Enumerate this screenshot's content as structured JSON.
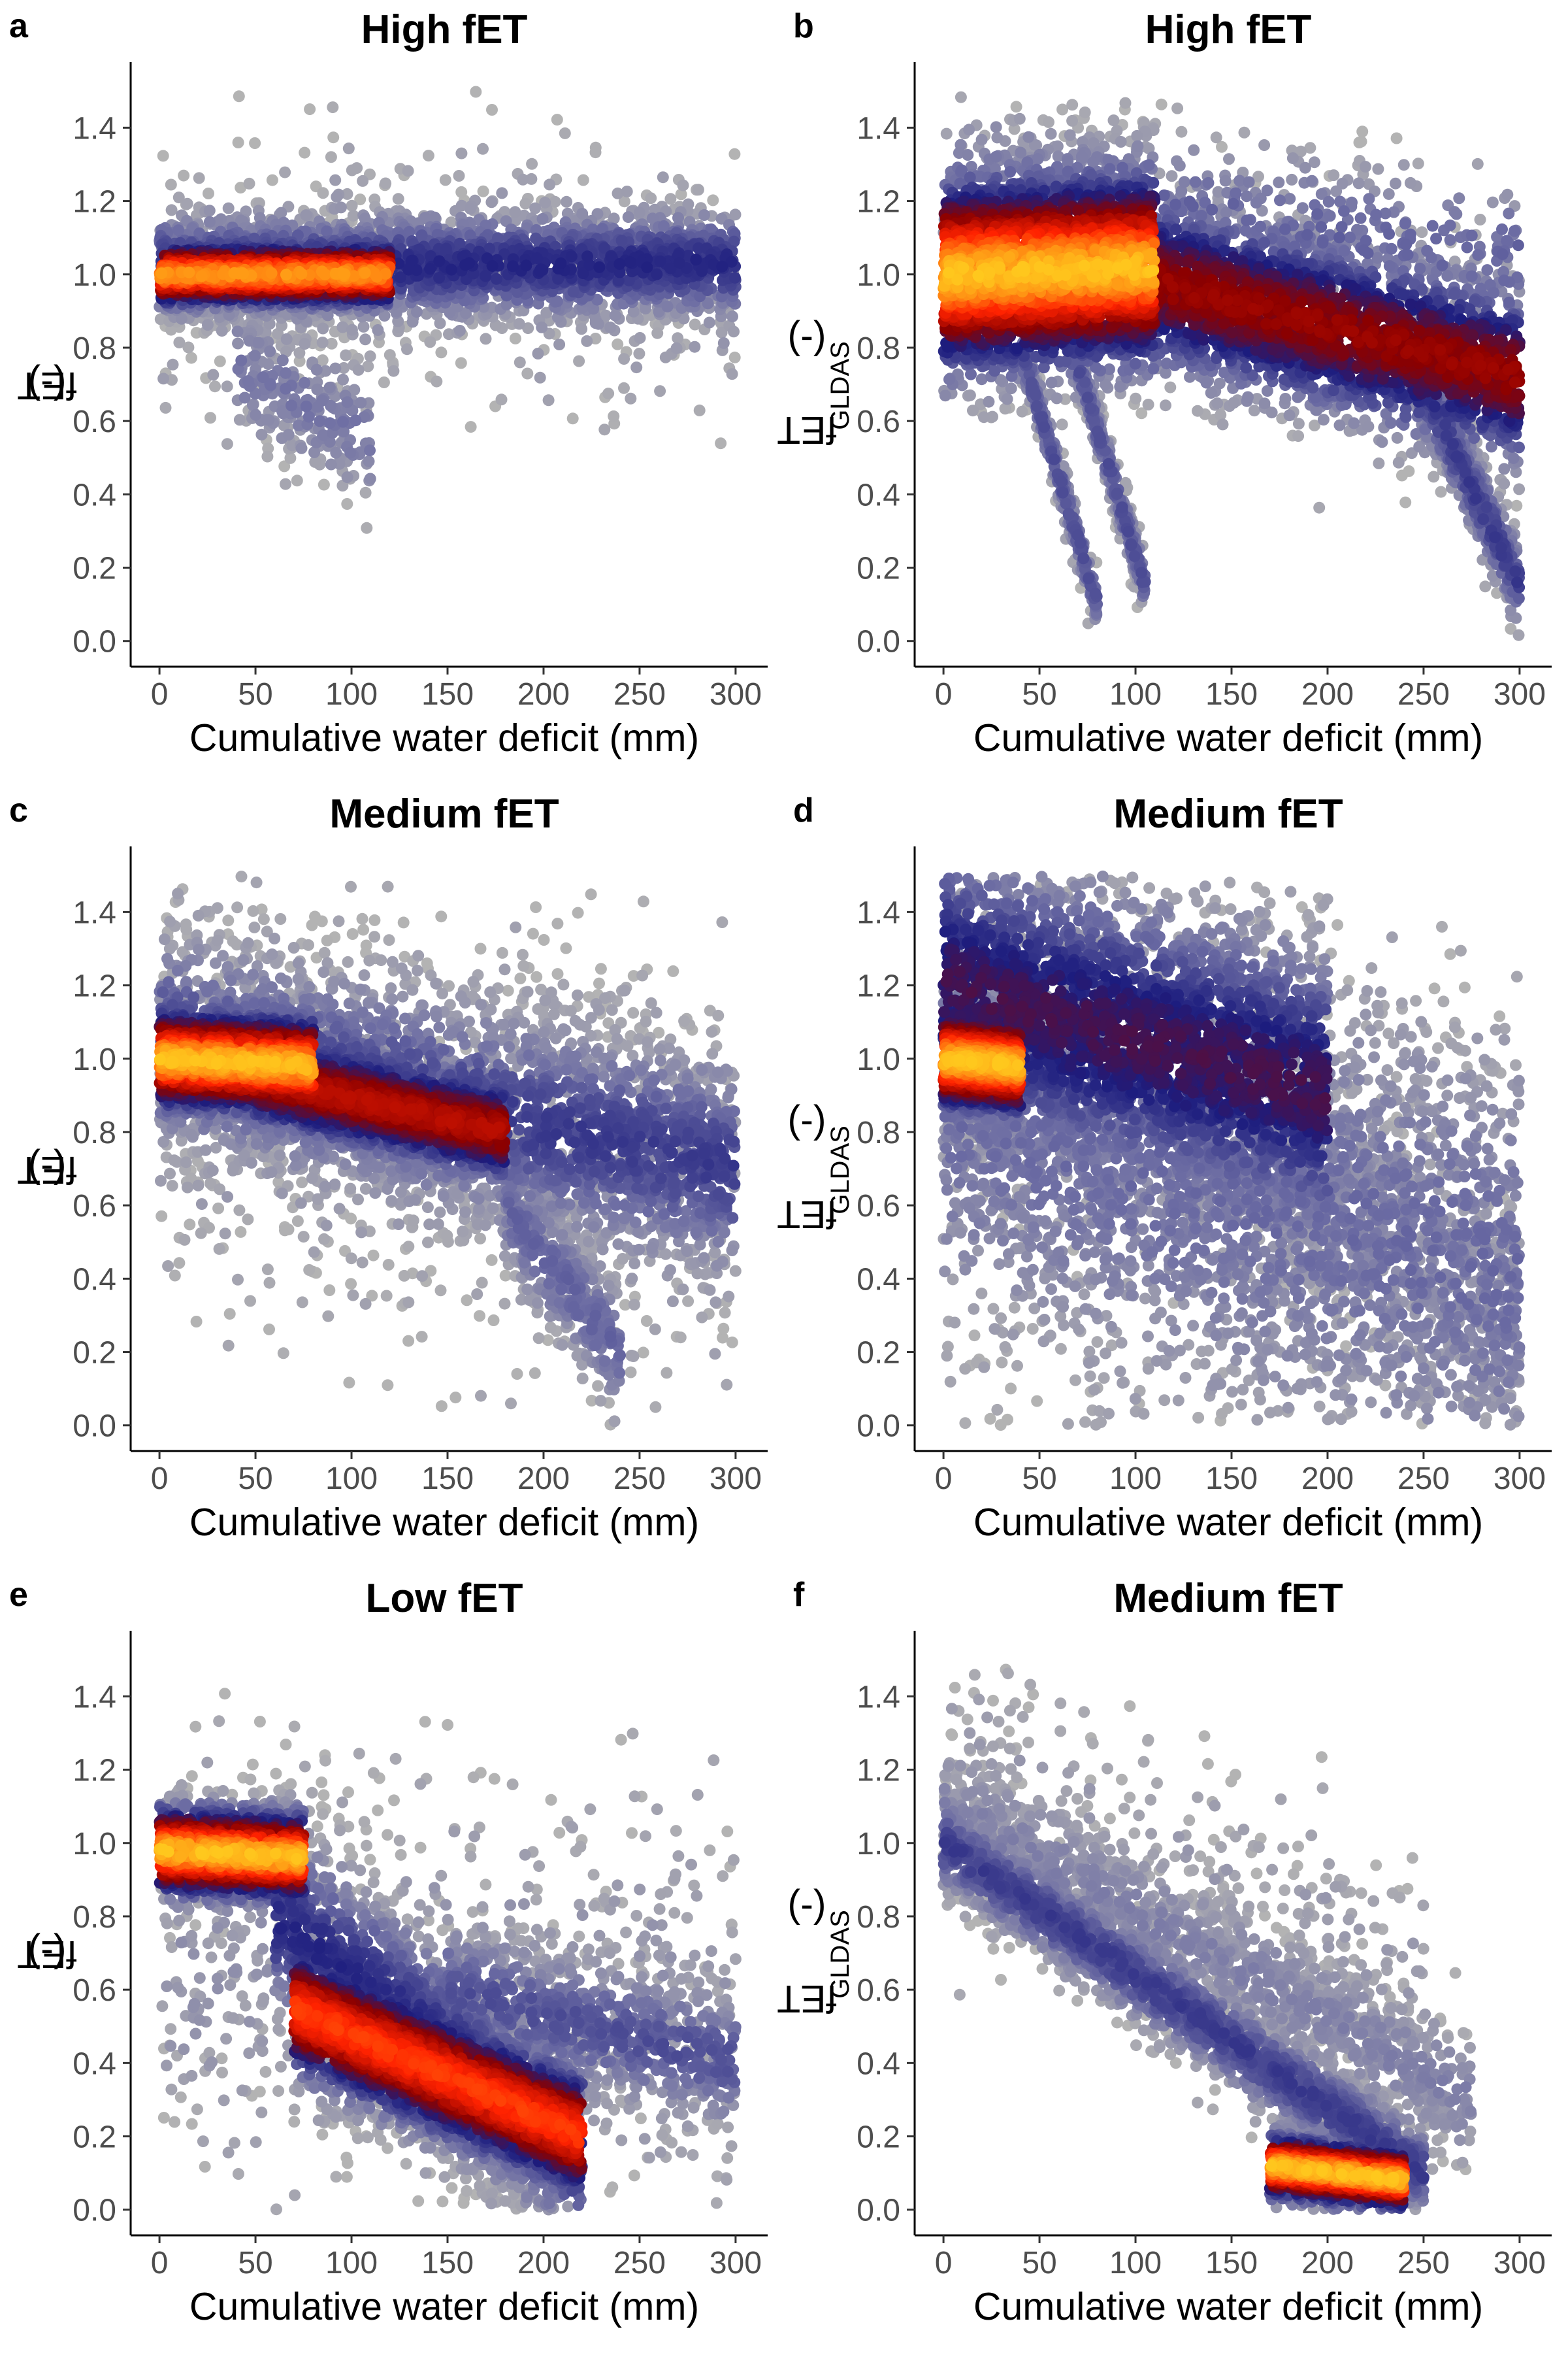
{
  "chart_data": [
    {
      "panel": "a",
      "type": "scatter",
      "title": "High fET",
      "xlabel": "Cumulative water deficit (mm)",
      "ylabel_main": "fET",
      "ylabel_sub": "",
      "ylabel_suffix": " (-)",
      "xlim": [
        -15,
        315
      ],
      "ylim": [
        -0.07,
        1.57
      ],
      "xticks": [
        0,
        50,
        100,
        150,
        200,
        250,
        300
      ],
      "yticks": [
        0.0,
        0.2,
        0.4,
        0.6,
        0.8,
        1.0,
        1.2,
        1.4
      ],
      "density_colormap": [
        "#b3b3b3",
        "#6b6ba3",
        "#1c1c7e",
        "#8b0000",
        "#ff2200",
        "#ffd21f"
      ],
      "clusters": [
        {
          "x_range": [
            0,
            300
          ],
          "y_start": 1.02,
          "y_end": 1.03,
          "spread": 0.08,
          "count": 2200,
          "density": 0.35
        },
        {
          "x_range": [
            0,
            120
          ],
          "y_start": 1.0,
          "y_end": 1.0,
          "spread": 0.05,
          "count": 1500,
          "density": 0.9
        },
        {
          "x_range": [
            0,
            300
          ],
          "y_start": 1.0,
          "y_end": 1.0,
          "spread": 0.18,
          "count": 500,
          "density": 0.08
        },
        {
          "x_range": [
            40,
            110
          ],
          "y_start": 0.75,
          "y_end": 0.55,
          "spread": 0.1,
          "count": 250,
          "density": 0.15
        }
      ]
    },
    {
      "panel": "b",
      "type": "scatter",
      "title": "High fET",
      "xlabel": "Cumulative water deficit (mm)",
      "ylabel_main": "fET",
      "ylabel_sub": "GLDAS",
      "ylabel_suffix": " (-)",
      "xlim": [
        -15,
        315
      ],
      "ylim": [
        -0.07,
        1.57
      ],
      "xticks": [
        0,
        50,
        100,
        150,
        200,
        250,
        300
      ],
      "yticks": [
        0.0,
        0.2,
        0.4,
        0.6,
        0.8,
        1.0,
        1.2,
        1.4
      ],
      "density_colormap": [
        "#b3b3b3",
        "#6b6ba3",
        "#1c1c7e",
        "#8b0000",
        "#ff2200",
        "#ffd21f"
      ],
      "clusters": [
        {
          "x_range": [
            0,
            110
          ],
          "y_start": 1.0,
          "y_end": 1.02,
          "spread": 0.15,
          "count": 2800,
          "density": 0.95
        },
        {
          "x_range": [
            110,
            300
          ],
          "y_start": 0.98,
          "y_end": 0.72,
          "spread": 0.13,
          "count": 2200,
          "density": 0.6
        },
        {
          "x_range": [
            0,
            300
          ],
          "y_start": 1.25,
          "y_end": 1.05,
          "spread": 0.12,
          "count": 500,
          "density": 0.2
        },
        {
          "x_range": [
            40,
            80
          ],
          "y_start": 0.8,
          "y_end": 0.1,
          "spread": 0.04,
          "count": 300,
          "density": 0.25
        },
        {
          "x_range": [
            70,
            105
          ],
          "y_start": 0.75,
          "y_end": 0.15,
          "spread": 0.04,
          "count": 300,
          "density": 0.25
        },
        {
          "x_range": [
            240,
            300
          ],
          "y_start": 0.8,
          "y_end": 0.15,
          "spread": 0.07,
          "count": 450,
          "density": 0.3
        }
      ]
    },
    {
      "panel": "c",
      "type": "scatter",
      "title": "Medium fET",
      "xlabel": "Cumulative water deficit (mm)",
      "ylabel_main": "fET",
      "ylabel_sub": "",
      "ylabel_suffix": " (-)",
      "xlim": [
        -15,
        315
      ],
      "ylim": [
        -0.07,
        1.57
      ],
      "xticks": [
        0,
        50,
        100,
        150,
        200,
        250,
        300
      ],
      "yticks": [
        0.0,
        0.2,
        0.4,
        0.6,
        0.8,
        1.0,
        1.2,
        1.4
      ],
      "density_colormap": [
        "#b3b3b3",
        "#6b6ba3",
        "#1c1c7e",
        "#8b0000",
        "#ff2200",
        "#ffd21f"
      ],
      "clusters": [
        {
          "x_range": [
            0,
            80
          ],
          "y_start": 1.0,
          "y_end": 0.98,
          "spread": 0.08,
          "count": 1500,
          "density": 0.95
        },
        {
          "x_range": [
            50,
            180
          ],
          "y_start": 0.95,
          "y_end": 0.8,
          "spread": 0.08,
          "count": 1800,
          "density": 0.65
        },
        {
          "x_range": [
            0,
            300
          ],
          "y_start": 1.05,
          "y_end": 0.7,
          "spread": 0.16,
          "count": 2500,
          "density": 0.3
        },
        {
          "x_range": [
            0,
            300
          ],
          "y_start": 1.0,
          "y_end": 0.7,
          "spread": 0.3,
          "count": 900,
          "density": 0.07
        },
        {
          "x_range": [
            180,
            240
          ],
          "y_start": 0.6,
          "y_end": 0.2,
          "spread": 0.1,
          "count": 400,
          "density": 0.2
        }
      ]
    },
    {
      "panel": "d",
      "type": "scatter",
      "title": "Medium fET",
      "xlabel": "Cumulative water deficit (mm)",
      "ylabel_main": "fET",
      "ylabel_sub": "GLDAS",
      "ylabel_suffix": " (-)",
      "xlim": [
        -15,
        315
      ],
      "ylim": [
        -0.07,
        1.57
      ],
      "xticks": [
        0,
        50,
        100,
        150,
        200,
        250,
        300
      ],
      "yticks": [
        0.0,
        0.2,
        0.4,
        0.6,
        0.8,
        1.0,
        1.2,
        1.4
      ],
      "density_colormap": [
        "#b3b3b3",
        "#6b6ba3",
        "#1c1c7e",
        "#8b0000",
        "#ff2200",
        "#ffd21f"
      ],
      "clusters": [
        {
          "x_range": [
            0,
            40
          ],
          "y_start": 1.0,
          "y_end": 0.98,
          "spread": 0.08,
          "count": 1200,
          "density": 0.95
        },
        {
          "x_range": [
            0,
            200
          ],
          "y_start": 1.2,
          "y_end": 0.9,
          "spread": 0.22,
          "count": 3000,
          "density": 0.45
        },
        {
          "x_range": [
            0,
            300
          ],
          "y_start": 0.9,
          "y_end": 0.4,
          "spread": 0.35,
          "count": 2800,
          "density": 0.18
        },
        {
          "x_range": [
            150,
            300
          ],
          "y_start": 0.8,
          "y_end": 0.3,
          "spread": 0.2,
          "count": 700,
          "density": 0.1
        }
      ]
    },
    {
      "panel": "e",
      "type": "scatter",
      "title": "Low fET",
      "xlabel": "Cumulative water deficit (mm)",
      "ylabel_main": "fET",
      "ylabel_sub": "",
      "ylabel_suffix": " (-)",
      "xlim": [
        -15,
        315
      ],
      "ylim": [
        -0.07,
        1.57
      ],
      "xticks": [
        0,
        50,
        100,
        150,
        200,
        250,
        300
      ],
      "yticks": [
        0.0,
        0.2,
        0.4,
        0.6,
        0.8,
        1.0,
        1.2,
        1.4
      ],
      "density_colormap": [
        "#b3b3b3",
        "#6b6ba3",
        "#1c1c7e",
        "#8b0000",
        "#ff2200",
        "#ffd21f"
      ],
      "clusters": [
        {
          "x_range": [
            0,
            75
          ],
          "y_start": 0.98,
          "y_end": 0.96,
          "spread": 0.07,
          "count": 1200,
          "density": 0.95
        },
        {
          "x_range": [
            70,
            220
          ],
          "y_start": 0.55,
          "y_end": 0.2,
          "spread": 0.1,
          "count": 2600,
          "density": 0.8
        },
        {
          "x_range": [
            60,
            220
          ],
          "y_start": 0.8,
          "y_end": 0.15,
          "spread": 0.15,
          "count": 1500,
          "density": 0.35
        },
        {
          "x_range": [
            150,
            300
          ],
          "y_start": 0.6,
          "y_end": 0.4,
          "spread": 0.1,
          "count": 700,
          "density": 0.25
        },
        {
          "x_range": [
            0,
            300
          ],
          "y_start": 0.7,
          "y_end": 0.5,
          "spread": 0.3,
          "count": 700,
          "density": 0.07
        }
      ]
    },
    {
      "panel": "f",
      "type": "scatter",
      "title": "Medium fET",
      "xlabel": "Cumulative water deficit (mm)",
      "ylabel_main": "fET",
      "ylabel_sub": "GLDAS",
      "ylabel_suffix": " (-)",
      "xlim": [
        -15,
        315
      ],
      "ylim": [
        -0.07,
        1.57
      ],
      "xticks": [
        0,
        50,
        100,
        150,
        200,
        250,
        300
      ],
      "yticks": [
        0.0,
        0.2,
        0.4,
        0.6,
        0.8,
        1.0,
        1.2,
        1.4
      ],
      "density_colormap": [
        "#b3b3b3",
        "#6b6ba3",
        "#1c1c7e",
        "#8b0000",
        "#ff2200",
        "#ffd21f"
      ],
      "clusters": [
        {
          "x_range": [
            170,
            240
          ],
          "y_start": 0.12,
          "y_end": 0.08,
          "spread": 0.05,
          "count": 1100,
          "density": 0.95
        },
        {
          "x_range": [
            0,
            250
          ],
          "y_start": 1.0,
          "y_end": 0.1,
          "spread": 0.07,
          "count": 1800,
          "density": 0.3
        },
        {
          "x_range": [
            0,
            275
          ],
          "y_start": 1.1,
          "y_end": 0.3,
          "spread": 0.1,
          "count": 1200,
          "density": 0.12
        },
        {
          "x_range": [
            0,
            250
          ],
          "y_start": 1.2,
          "y_end": 0.6,
          "spread": 0.2,
          "count": 400,
          "density": 0.05
        }
      ]
    }
  ]
}
